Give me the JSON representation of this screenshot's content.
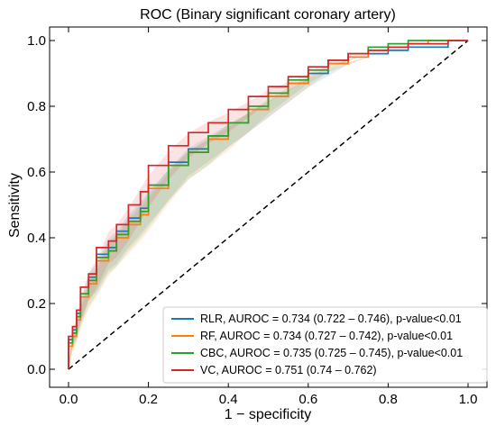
{
  "chart_data": {
    "type": "line",
    "title": "ROC (Binary significant coronary artery)",
    "xlabel": "1 − specificity",
    "ylabel": "Sensitivity",
    "xlim": [
      0,
      1
    ],
    "ylim": [
      0,
      1
    ],
    "xticks": [
      "0.0",
      "0.2",
      "0.4",
      "0.6",
      "0.8",
      "1.0"
    ],
    "yticks": [
      "0.0",
      "0.2",
      "0.4",
      "0.6",
      "0.8",
      "1.0"
    ],
    "grid": false,
    "legend_position": "bottom-right",
    "reference_line": {
      "style": "dashed",
      "color": "#000000",
      "x": [
        0,
        1
      ],
      "y": [
        0,
        1
      ]
    },
    "series": [
      {
        "name": "RLR, AUROC = 0.734 (0.722 – 0.746), p-value<0.01",
        "color": "#1f77b4",
        "x": [
          0,
          0.01,
          0.02,
          0.03,
          0.05,
          0.07,
          0.1,
          0.12,
          0.15,
          0.18,
          0.2,
          0.25,
          0.3,
          0.35,
          0.4,
          0.45,
          0.5,
          0.55,
          0.6,
          0.65,
          0.7,
          0.75,
          0.8,
          0.85,
          0.9,
          0.95,
          1.0
        ],
        "y": [
          0,
          0.09,
          0.12,
          0.17,
          0.25,
          0.28,
          0.35,
          0.37,
          0.42,
          0.46,
          0.49,
          0.56,
          0.63,
          0.67,
          0.71,
          0.75,
          0.79,
          0.83,
          0.87,
          0.9,
          0.93,
          0.95,
          0.96,
          0.97,
          0.98,
          0.98,
          1.0
        ]
      },
      {
        "name": "RF, AUROC = 0.734 (0.727 – 0.742), p-value<0.01",
        "color": "#ff7f0e",
        "x": [
          0,
          0.01,
          0.02,
          0.03,
          0.05,
          0.07,
          0.1,
          0.12,
          0.15,
          0.18,
          0.2,
          0.25,
          0.3,
          0.35,
          0.4,
          0.45,
          0.5,
          0.55,
          0.6,
          0.65,
          0.7,
          0.75,
          0.8,
          0.85,
          0.9,
          0.95,
          1.0
        ],
        "y": [
          0,
          0.07,
          0.1,
          0.15,
          0.22,
          0.26,
          0.33,
          0.36,
          0.4,
          0.44,
          0.47,
          0.55,
          0.62,
          0.66,
          0.7,
          0.75,
          0.79,
          0.83,
          0.87,
          0.91,
          0.93,
          0.95,
          0.97,
          0.98,
          0.99,
          1.0,
          1.0
        ]
      },
      {
        "name": "CBC, AUROC = 0.735 (0.725 – 0.745), p-value<0.01",
        "color": "#2ca02c",
        "x": [
          0,
          0.01,
          0.02,
          0.03,
          0.05,
          0.07,
          0.1,
          0.12,
          0.15,
          0.18,
          0.2,
          0.25,
          0.3,
          0.35,
          0.4,
          0.45,
          0.5,
          0.55,
          0.6,
          0.65,
          0.7,
          0.75,
          0.8,
          0.85,
          0.9,
          0.95,
          1.0
        ],
        "y": [
          0,
          0.08,
          0.11,
          0.16,
          0.23,
          0.27,
          0.34,
          0.36,
          0.41,
          0.45,
          0.48,
          0.56,
          0.62,
          0.66,
          0.71,
          0.75,
          0.8,
          0.84,
          0.88,
          0.91,
          0.94,
          0.96,
          0.98,
          0.99,
          1.0,
          1.0,
          1.0
        ]
      },
      {
        "name": "VC, AUROC = 0.751 (0.74 – 0.762)",
        "color": "#d62728",
        "x": [
          0,
          0.01,
          0.02,
          0.03,
          0.05,
          0.07,
          0.1,
          0.12,
          0.15,
          0.18,
          0.2,
          0.25,
          0.3,
          0.35,
          0.4,
          0.45,
          0.5,
          0.55,
          0.6,
          0.65,
          0.7,
          0.75,
          0.8,
          0.85,
          0.9,
          0.95,
          1.0
        ],
        "y": [
          0,
          0.1,
          0.13,
          0.18,
          0.25,
          0.29,
          0.37,
          0.39,
          0.44,
          0.5,
          0.54,
          0.62,
          0.68,
          0.72,
          0.75,
          0.79,
          0.83,
          0.86,
          0.89,
          0.92,
          0.94,
          0.96,
          0.97,
          0.98,
          0.99,
          0.99,
          1.0
        ]
      }
    ]
  }
}
